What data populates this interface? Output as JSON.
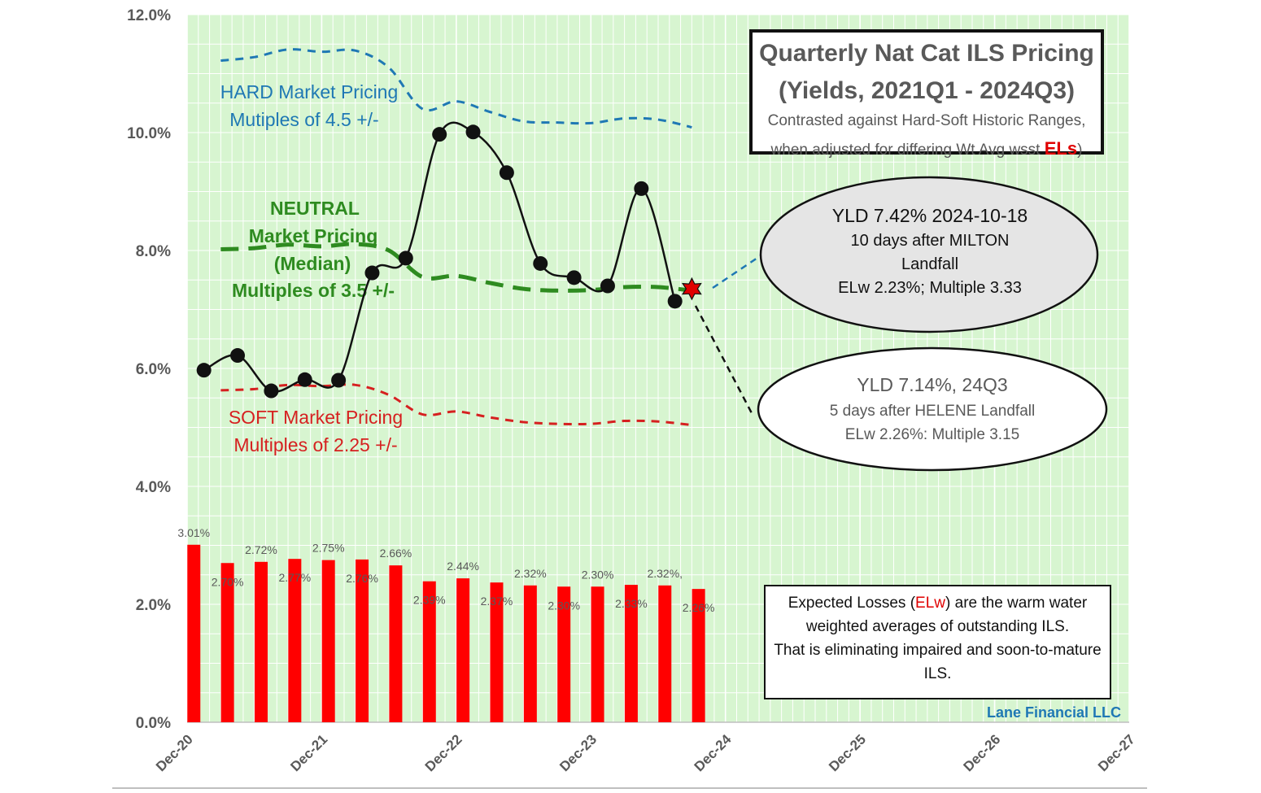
{
  "chart_data": {
    "type": "line",
    "title": "Quarterly Nat Cat ILS Pricing",
    "subtitle": "(Yields, 2021Q1 - 2024Q3)",
    "caption_line1": "Contrasted against Hard-Soft Historic Ranges,",
    "caption_line2_prefix": "when adjusted for differing Wt Avg wsst ",
    "caption_line2_highlight": "ELs",
    "caption_line2_suffix": ")",
    "y_ticks": [
      "0.0%",
      "2.0%",
      "4.0%",
      "6.0%",
      "8.0%",
      "10.0%",
      "12.0%"
    ],
    "x_ticks": [
      "Dec-20",
      "Dec-21",
      "Dec-22",
      "Dec-23",
      "Dec-24",
      "Dec-25",
      "Dec-26",
      "Dec-27"
    ],
    "ylim": [
      0,
      12
    ],
    "xlim": [
      0,
      28
    ],
    "series": [
      {
        "name": "Yield",
        "x": [
          0.5,
          1.5,
          2.5,
          3.5,
          4.5,
          5.5,
          6.5,
          7.5,
          8.5,
          9.5,
          10.5,
          11.5,
          12.5,
          13.5,
          14.5
        ],
        "values": [
          5.97,
          6.22,
          5.62,
          5.81,
          5.8,
          7.62,
          7.87,
          9.97,
          10.01,
          9.32,
          7.78,
          7.54,
          7.4,
          9.05,
          7.14
        ]
      },
      {
        "name": "HARD Market Pricing",
        "x": [
          1,
          2,
          3,
          4,
          5,
          6,
          7,
          8,
          9,
          10,
          11,
          12,
          13,
          14,
          15
        ],
        "values": [
          11.22,
          11.28,
          11.41,
          11.37,
          11.39,
          11.1,
          10.4,
          10.53,
          10.35,
          10.19,
          10.17,
          10.16,
          10.24,
          10.22,
          10.09
        ]
      },
      {
        "name": "NEUTRAL Market Pricing",
        "x": [
          1,
          2,
          3,
          4,
          5,
          6,
          7,
          8,
          9,
          10,
          11,
          12,
          13,
          14,
          15
        ],
        "values": [
          8.02,
          8.04,
          8.1,
          8.07,
          8.11,
          8.0,
          7.55,
          7.57,
          7.45,
          7.35,
          7.32,
          7.33,
          7.38,
          7.38,
          7.32
        ]
      },
      {
        "name": "SOFT Market Pricing",
        "x": [
          1,
          2,
          3,
          4,
          5,
          6,
          7,
          8,
          9,
          10,
          11,
          12,
          13,
          14,
          15
        ],
        "values": [
          5.63,
          5.65,
          5.72,
          5.7,
          5.72,
          5.55,
          5.22,
          5.27,
          5.17,
          5.09,
          5.06,
          5.06,
          5.11,
          5.1,
          5.04
        ]
      },
      {
        "name": "ELw",
        "type": "bar",
        "x": [
          0.2,
          1.2,
          2.2,
          3.2,
          4.2,
          5.2,
          6.2,
          7.2,
          8.2,
          9.2,
          10.2,
          11.2,
          12.2,
          13.2,
          14.2,
          15.2
        ],
        "values": [
          3.01,
          2.7,
          2.72,
          2.77,
          2.75,
          2.76,
          2.66,
          2.39,
          2.44,
          2.37,
          2.32,
          2.3,
          2.3,
          2.33,
          2.32,
          2.26
        ],
        "labels": [
          "3.01%",
          "2.70%",
          "2.72%",
          "2.77%",
          "2.75%",
          "2.76%",
          "2.66%",
          "2.39%",
          "2.44%",
          "2.37%",
          "2.32%",
          "2.30%",
          "2.30%",
          "2.33%",
          "2.32%,",
          "2.26%"
        ]
      }
    ],
    "current_point": {
      "x": 15.0,
      "value": 7.35
    },
    "zones": {
      "hard_line1": "HARD Market Pricing",
      "hard_line2": "Mutiples of 4.5 +/-",
      "neutral_line1": "NEUTRAL",
      "neutral_line2": "Market Pricing",
      "neutral_line3": "(Median)",
      "neutral_line4": "Multiples of 3.5 +/-",
      "soft_line1": "SOFT Market Pricing",
      "soft_line2": "Multiples of 2.25 +/-"
    },
    "colors": {
      "plot_bg": "#d7f5d0",
      "grid": "#ffffff",
      "yield_line": "#111111",
      "hard": "#1f78b4",
      "neutral": "#2e8b20",
      "soft": "#d62020",
      "bar": "#ff0000",
      "star": "#e00000"
    }
  },
  "callout_milton": {
    "line1": "YLD  7.42%  2024-10-18",
    "line2": "10 days after MILTON",
    "line3": "Landfall",
    "line4": "ELw 2.23%; Multiple 3.33"
  },
  "callout_helene": {
    "line1": "YLD  7.14%, 24Q3",
    "line2": "5 days after HELENE Landfall",
    "line3": "ELw 2.26%: Multiple 3.15"
  },
  "note": {
    "prefix": "Expected Losses (",
    "highlight": "ELw",
    "suffix": ") are the warm water weighted averages of outstanding ILS.",
    "line2": "That  is eliminating impaired and soon-to-mature ILS."
  },
  "brand": "Lane Financial LLC"
}
